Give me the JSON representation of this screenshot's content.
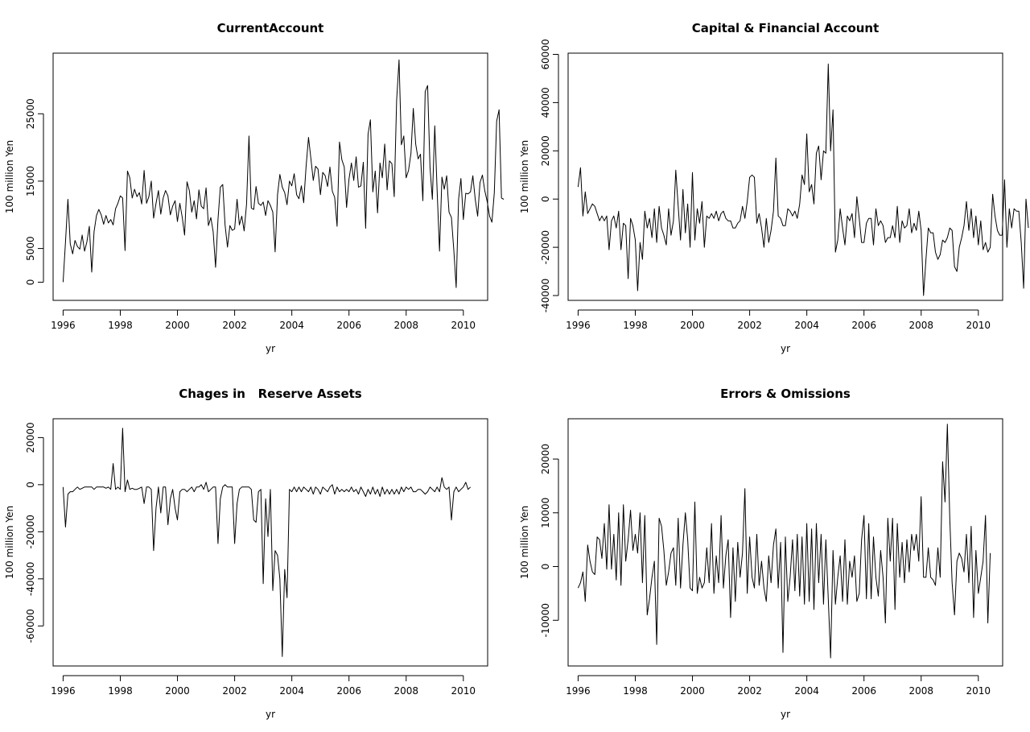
{
  "window": {
    "title": ""
  },
  "chart_data": [
    {
      "type": "line",
      "title": "CurrentAccount",
      "xlabel": "yr",
      "ylabel": "100 million Yen",
      "xlim": [
        1995.65,
        2010.85
      ],
      "ylim": [
        -2700,
        34000
      ],
      "xticks": [
        1996,
        1998,
        2000,
        2002,
        2004,
        2006,
        2008,
        2010
      ],
      "yticks": [
        0,
        5000,
        15000,
        25000
      ],
      "grid": false,
      "x_start": 1996.0,
      "x_step": 0.0833333,
      "series": [
        {
          "values": [
            0,
            6000,
            12300,
            5700,
            4200,
            6200,
            5300,
            4900,
            7000,
            4600,
            6000,
            8300,
            1500,
            7500,
            9900,
            10800,
            10000,
            8600,
            9900,
            8800,
            9300,
            8500,
            10900,
            11700,
            12800,
            12500,
            4700,
            16500,
            15500,
            12500,
            13800,
            12700,
            13300,
            11600,
            16600,
            11700,
            12700,
            15000,
            9500,
            11700,
            13600,
            10100,
            12500,
            13600,
            12800,
            10000,
            11300,
            12100,
            9000,
            11700,
            9600,
            7000,
            14900,
            13600,
            10400,
            12100,
            9400,
            13700,
            11300,
            10900,
            14000,
            8400,
            9600,
            7500,
            2200,
            9300,
            14100,
            14500,
            8500,
            5200,
            8400,
            7700,
            7900,
            12300,
            8500,
            9800,
            7600,
            11600,
            21700,
            11000,
            10800,
            14200,
            11700,
            11400,
            11900,
            9900,
            12100,
            11400,
            10400,
            4500,
            13000,
            16000,
            14100,
            13300,
            11500,
            15000,
            14300,
            16100,
            13000,
            12400,
            14300,
            11800,
            17200,
            21500,
            18400,
            15100,
            17200,
            16800,
            13000,
            16300,
            15800,
            14200,
            17100,
            13500,
            12600,
            8300,
            20800,
            18200,
            17100,
            11100,
            15300,
            17700,
            15100,
            18600,
            14100,
            14300,
            17800,
            8000,
            22000,
            24100,
            13400,
            16500,
            10300,
            17700,
            15500,
            20500,
            13700,
            18000,
            17600,
            12700,
            27000,
            33000,
            20400,
            21700,
            15500,
            16600,
            19100,
            25800,
            20500,
            18300,
            19000,
            12100,
            28300,
            29200,
            17000,
            12300,
            23200,
            13700,
            4600,
            15600,
            13800,
            15800,
            10400,
            9600,
            4700,
            -800,
            12300,
            15400,
            9300,
            13200,
            13100,
            13400,
            15800,
            12300,
            9800,
            14800,
            15900,
            13600,
            12000,
            9800,
            8900,
            13300,
            23900,
            25600,
            12500,
            12300
          ]
        }
      ]
    },
    {
      "type": "line",
      "title": "Capital & Financial Account",
      "xlabel": "yr",
      "ylabel": "100 million Yen",
      "xlim": [
        1995.65,
        2010.85
      ],
      "ylim": [
        -42000,
        60500
      ],
      "xticks": [
        1996,
        1998,
        2000,
        2002,
        2004,
        2006,
        2008,
        2010
      ],
      "yticks": [
        -40000,
        -20000,
        0,
        20000,
        40000,
        60000
      ],
      "grid": false,
      "x_start": 1996.0,
      "x_step": 0.0833333,
      "series": [
        {
          "values": [
            5000,
            13000,
            -7000,
            3000,
            -6000,
            -4000,
            -2000,
            -3000,
            -6000,
            -9000,
            -7000,
            -9000,
            -7000,
            -21000,
            -9000,
            -7000,
            -12000,
            -5000,
            -21000,
            -10000,
            -11000,
            -33000,
            -8000,
            -11000,
            -17000,
            -38000,
            -18000,
            -25000,
            -5000,
            -12000,
            -8000,
            -16000,
            -4000,
            -18000,
            -3000,
            -12000,
            -15000,
            -19000,
            -4000,
            -15000,
            -9000,
            12000,
            -3000,
            -17000,
            4000,
            -14000,
            -2000,
            -20000,
            11000,
            -17000,
            -4000,
            -10000,
            -1000,
            -20000,
            -7000,
            -8000,
            -6000,
            -8000,
            -5000,
            -9000,
            -6000,
            -5000,
            -8000,
            -9000,
            -9000,
            -12000,
            -12000,
            -10000,
            -9000,
            -3000,
            -8000,
            -1000,
            9000,
            10000,
            9000,
            -10000,
            -6000,
            -12000,
            -20000,
            -8000,
            -18000,
            -13000,
            -5000,
            17000,
            -7000,
            -8000,
            -11000,
            -11000,
            -4000,
            -5000,
            -7000,
            -5000,
            -8000,
            -2000,
            10000,
            6000,
            27000,
            3000,
            6000,
            -2000,
            19000,
            22000,
            8000,
            20000,
            19000,
            56000,
            20000,
            37000,
            -22000,
            -17000,
            -4000,
            -12000,
            -19000,
            -7000,
            -9000,
            -6000,
            -16000,
            1000,
            -8000,
            -18000,
            -18000,
            -10000,
            -8000,
            -8000,
            -19000,
            -4000,
            -11000,
            -9000,
            -11000,
            -18000,
            -16000,
            -16000,
            -11000,
            -16000,
            -3000,
            -18000,
            -9000,
            -12000,
            -11000,
            -4000,
            -14000,
            -10000,
            -13000,
            -5000,
            -13000,
            -40000,
            -25000,
            -12000,
            -14000,
            -14000,
            -22000,
            -25000,
            -23000,
            -17000,
            -18000,
            -16000,
            -12000,
            -13000,
            -28000,
            -30000,
            -20000,
            -16000,
            -11000,
            -1000,
            -13000,
            -4000,
            -16000,
            -7000,
            -19000,
            -9000,
            -21000,
            -18000,
            -22000,
            -20000,
            2000,
            -7000,
            -13000,
            -15000,
            -15000,
            8000,
            -20000,
            -4000,
            -12000,
            -4000,
            -5000,
            -5000,
            -18000,
            -37000,
            0,
            -12000
          ]
        }
      ]
    },
    {
      "type": "line",
      "title": "Chages in   Reserve Assets",
      "xlabel": "yr",
      "ylabel": "100 million Yen",
      "xlim": [
        1995.65,
        2010.85
      ],
      "ylim": [
        -77000,
        28000
      ],
      "xticks": [
        1996,
        1998,
        2000,
        2002,
        2004,
        2006,
        2008,
        2010
      ],
      "yticks": [
        -60000,
        -40000,
        -20000,
        0,
        20000
      ],
      "grid": false,
      "x_start": 1996.0,
      "x_step": 0.0833333,
      "series": [
        {
          "values": [
            -1000,
            -18000,
            -4000,
            -3000,
            -3000,
            -2000,
            -1000,
            -2000,
            -1500,
            -1000,
            -1000,
            -1000,
            -1000,
            -2000,
            -1000,
            -1000,
            -1000,
            -1000,
            -1500,
            -1000,
            -2000,
            9000,
            -2000,
            -1000,
            -2000,
            24000,
            -3000,
            2000,
            -2000,
            -1500,
            -2000,
            -2000,
            -1500,
            -1000,
            -8000,
            -1000,
            -1000,
            -2000,
            -28000,
            -10000,
            -1000,
            -12000,
            -1000,
            -1000,
            -17000,
            -6000,
            -2000,
            -10000,
            -15000,
            -3000,
            -2000,
            -2000,
            -3000,
            -2000,
            -1000,
            -3000,
            -1000,
            -1000,
            0,
            -2000,
            1000,
            -3000,
            -2000,
            -1000,
            -1000,
            -25000,
            -6000,
            -1000,
            0,
            -1000,
            -1000,
            -1000,
            -25000,
            -8000,
            -2000,
            -1000,
            -1000,
            -1000,
            -1000,
            -2000,
            -15000,
            -16000,
            -3000,
            -2000,
            -42000,
            -6000,
            -22000,
            -2000,
            -45000,
            -28000,
            -30000,
            -40000,
            -73000,
            -36000,
            -48000,
            -2000,
            -3000,
            -1000,
            -3000,
            -1000,
            -3000,
            -1000,
            -2000,
            -3000,
            -1000,
            -4000,
            -1000,
            -2000,
            -4000,
            -1000,
            -2000,
            -3000,
            -1000,
            0,
            -4000,
            -1000,
            -3000,
            -2000,
            -3000,
            -2000,
            -3000,
            -1000,
            -3000,
            -2000,
            -4000,
            -1000,
            -3000,
            -5000,
            -2000,
            -4000,
            -1000,
            -4000,
            -2000,
            -5000,
            -1000,
            -4000,
            -2000,
            -4000,
            -2000,
            -4000,
            -2000,
            -4000,
            -1000,
            -3000,
            -1000,
            -2000,
            -1000,
            -3000,
            -3000,
            -2000,
            -2000,
            -3000,
            -4000,
            -3000,
            -1000,
            -2000,
            -3000,
            -1000,
            -3000,
            3000,
            -1000,
            -2000,
            -1000,
            -15000,
            -3000,
            -1000,
            -3000,
            -2000,
            -1000,
            1000,
            -2000,
            -1000
          ]
        }
      ]
    },
    {
      "type": "line",
      "title": "Errors & Omissions",
      "xlabel": "yr",
      "ylabel": "100 million Yen",
      "xlim": [
        1995.65,
        2010.85
      ],
      "ylim": [
        -18500,
        27500
      ],
      "xticks": [
        1996,
        1998,
        2000,
        2002,
        2004,
        2006,
        2008,
        2010
      ],
      "yticks": [
        -10000,
        0,
        10000,
        20000
      ],
      "grid": false,
      "x_start": 1996.0,
      "x_step": 0.0833333,
      "series": [
        {
          "values": [
            -4000,
            -3000,
            -1000,
            -6500,
            4000,
            1000,
            -1000,
            -1500,
            5500,
            5000,
            1500,
            8000,
            -500,
            11500,
            -500,
            6000,
            -2500,
            10000,
            -3500,
            11500,
            1000,
            5000,
            10500,
            3000,
            6000,
            2500,
            10000,
            -3000,
            9500,
            -9000,
            -6000,
            -2000,
            1000,
            -14500,
            9000,
            7500,
            3000,
            -3500,
            -1000,
            2500,
            3500,
            -3500,
            9000,
            -4000,
            4000,
            10000,
            5000,
            -4000,
            -4500,
            12000,
            -5000,
            -2000,
            -4000,
            -3000,
            3500,
            -3000,
            8000,
            -5000,
            2000,
            -3000,
            9500,
            -4000,
            2000,
            5000,
            -9500,
            3500,
            -6500,
            4500,
            -2000,
            2500,
            14500,
            -5000,
            5500,
            -2000,
            -4000,
            6000,
            -3500,
            1000,
            -4000,
            -6500,
            2000,
            -3000,
            4000,
            7000,
            -4000,
            4500,
            -16000,
            5500,
            -6500,
            -2000,
            5000,
            -4500,
            6000,
            -5500,
            5500,
            -7000,
            8000,
            -6500,
            7000,
            -8000,
            8000,
            -3000,
            6000,
            -7000,
            5000,
            -6000,
            -17000,
            3000,
            -7000,
            -2000,
            2000,
            -6500,
            5000,
            -7000,
            1000,
            -2000,
            2000,
            -6500,
            -5000,
            5000,
            9500,
            -6000,
            8000,
            -6000,
            5500,
            -2000,
            -5500,
            3000,
            -2000,
            -10500,
            9000,
            1000,
            9000,
            -8000,
            8000,
            -2000,
            4500,
            -3000,
            5000,
            -1000,
            6000,
            3000,
            6000,
            1000,
            13000,
            -2000,
            -2000,
            3500,
            -2000,
            -2500,
            -3500,
            3500,
            -2000,
            19500,
            12000,
            26500,
            9000,
            -3000,
            -9000,
            1000,
            2500,
            1500,
            -1000,
            6000,
            -3000,
            7500,
            -9500,
            3000,
            -5000,
            -2000,
            1000,
            9500,
            -10500,
            2500
          ]
        }
      ]
    }
  ]
}
